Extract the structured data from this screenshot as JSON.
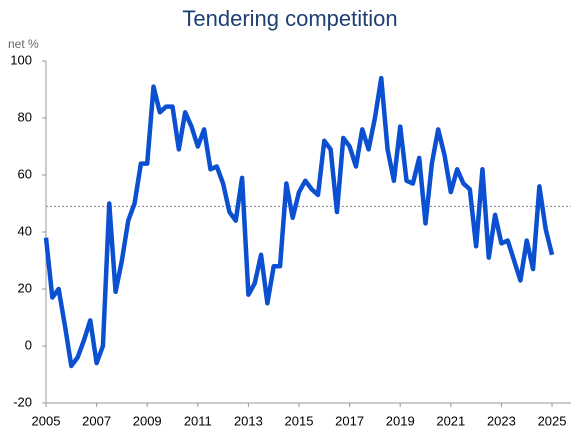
{
  "chart_data": {
    "type": "line",
    "title": "Tendering competition",
    "y_label": "net %",
    "x": [
      2005,
      2005.25,
      2005.5,
      2005.75,
      2006,
      2006.25,
      2006.5,
      2006.75,
      2007,
      2007.25,
      2007.5,
      2007.75,
      2008,
      2008.25,
      2008.5,
      2008.75,
      2009,
      2009.25,
      2009.5,
      2009.75,
      2010,
      2010.25,
      2010.5,
      2010.75,
      2011,
      2011.25,
      2011.5,
      2011.75,
      2012,
      2012.25,
      2012.5,
      2012.75,
      2013,
      2013.25,
      2013.5,
      2013.75,
      2014,
      2014.25,
      2014.5,
      2014.75,
      2015,
      2015.25,
      2015.5,
      2015.75,
      2016,
      2016.25,
      2016.5,
      2016.75,
      2017,
      2017.25,
      2017.5,
      2017.75,
      2018,
      2018.25,
      2018.5,
      2018.75,
      2019,
      2019.25,
      2019.5,
      2019.75,
      2020,
      2020.25,
      2020.5,
      2020.75,
      2021,
      2021.25,
      2021.5,
      2021.75,
      2022,
      2022.25,
      2022.5,
      2022.75,
      2023,
      2023.25,
      2023.5,
      2023.75,
      2024,
      2024.25,
      2024.5,
      2024.75,
      2025
    ],
    "series": [
      {
        "name": "Tendering competition",
        "color": "#0b50d0",
        "values": [
          38,
          17,
          20,
          7,
          -7,
          -4,
          2,
          9,
          -6,
          0,
          50,
          19,
          30,
          44,
          50,
          64,
          64,
          91,
          82,
          84,
          84,
          69,
          82,
          77,
          70,
          76,
          62,
          63,
          57,
          47,
          44,
          59,
          18,
          22,
          32,
          15,
          28,
          28,
          57,
          45,
          54,
          58,
          55,
          53,
          72,
          69,
          47,
          73,
          70,
          63,
          76,
          69,
          80,
          94,
          69,
          58,
          77,
          58,
          57,
          66,
          43,
          64,
          76,
          67,
          54,
          62,
          57,
          55,
          35,
          62,
          31,
          46,
          36,
          37,
          30,
          23,
          37,
          27,
          56,
          41,
          32
        ]
      }
    ],
    "reference_line": 49,
    "xlim": [
      2005,
      2025.75
    ],
    "xticks": [
      2005,
      2007,
      2009,
      2011,
      2013,
      2015,
      2017,
      2019,
      2021,
      2023,
      2025
    ],
    "ylim": [
      -20,
      100
    ],
    "yticks": [
      -20,
      0,
      20,
      40,
      60,
      80,
      100
    ]
  }
}
